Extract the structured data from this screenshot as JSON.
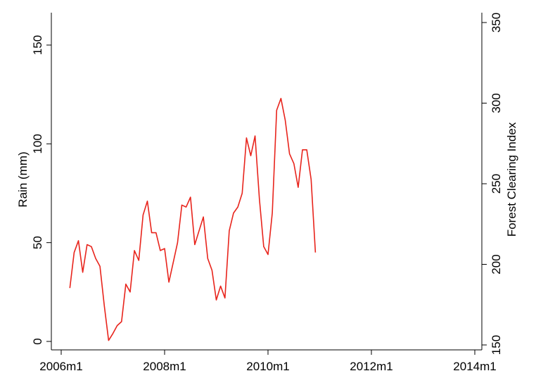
{
  "chart_data": {
    "type": "line",
    "title": "",
    "xlabel": "",
    "ylabel_left": "Rain (mm)",
    "ylabel_right": "Forest Clearing Index",
    "x_range": [
      "2006m1",
      "2014m1"
    ],
    "x_ticks": [
      "2006m1",
      "2008m1",
      "2010m1",
      "2012m1",
      "2014m1"
    ],
    "y_left_range": [
      0,
      165
    ],
    "y_left_ticks": [
      "0",
      "50",
      "100",
      "150"
    ],
    "y_right_range": [
      150,
      350
    ],
    "y_right_ticks": [
      "150",
      "200",
      "250",
      "300",
      "350"
    ],
    "grid": false,
    "legend": "none",
    "series": [
      {
        "axis": "left",
        "color": "#e8241c",
        "x": [
          "2006m3",
          "2006m4",
          "2006m5",
          "2006m6",
          "2006m7",
          "2006m8",
          "2006m9",
          "2006m10",
          "2006m11",
          "2006m12",
          "2007m1",
          "2007m2",
          "2007m3",
          "2007m4",
          "2007m5",
          "2007m6",
          "2007m7",
          "2007m8",
          "2007m9",
          "2007m10",
          "2007m11",
          "2007m12",
          "2008m1",
          "2008m2",
          "2008m3",
          "2008m4",
          "2008m5",
          "2008m6",
          "2008m7",
          "2008m8",
          "2008m9",
          "2008m10",
          "2008m11",
          "2008m12",
          "2009m1",
          "2009m2",
          "2009m3",
          "2009m4",
          "2009m5",
          "2009m6",
          "2009m7",
          "2009m8",
          "2009m9",
          "2009m10",
          "2009m11",
          "2009m12",
          "2010m1",
          "2010m2",
          "2010m3",
          "2010m4",
          "2010m5",
          "2010m6",
          "2010m7",
          "2010m8",
          "2010m9",
          "2010m10",
          "2010m11",
          "2010m12"
        ],
        "y": [
          27,
          45,
          51,
          35,
          49,
          48,
          42,
          38,
          18,
          0.5,
          4,
          8,
          10,
          29,
          25,
          46,
          41,
          64,
          71,
          55,
          55,
          46,
          47,
          30,
          40,
          50,
          69,
          68,
          73,
          49,
          56,
          63,
          42,
          36,
          21,
          28,
          22,
          56,
          65,
          68,
          75,
          103,
          94,
          104,
          72,
          48,
          44,
          65,
          117,
          123,
          112,
          95,
          90,
          78,
          97,
          97,
          82,
          45
        ]
      }
    ]
  }
}
